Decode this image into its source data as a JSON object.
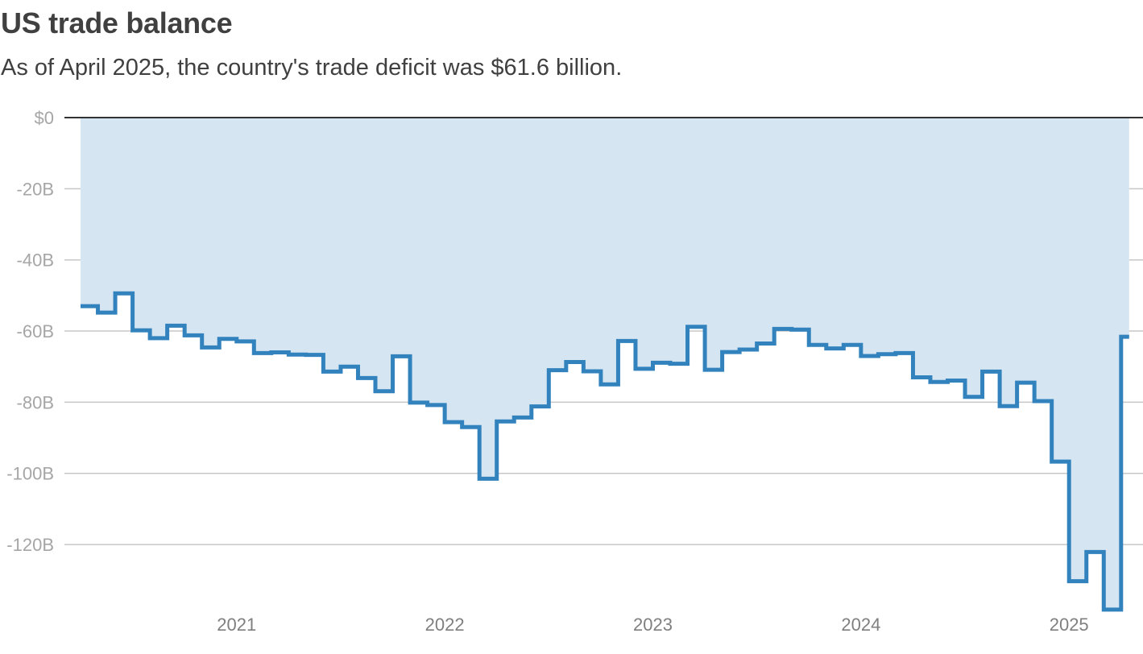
{
  "chart_data": {
    "type": "area",
    "title": "US trade balance",
    "subtitle": "As of April 2025, the country's trade deficit was $61.6 billion.",
    "xlabel": "",
    "ylabel": "",
    "ylim": [
      -139,
      0
    ],
    "y_ticks": [
      {
        "value": 0,
        "label": "$0"
      },
      {
        "value": -20,
        "label": "-20B"
      },
      {
        "value": -40,
        "label": "-40B"
      },
      {
        "value": -60,
        "label": "-60B"
      },
      {
        "value": -80,
        "label": "-80B"
      },
      {
        "value": -100,
        "label": "-100B"
      },
      {
        "value": -120,
        "label": "-120B"
      }
    ],
    "x_ticks": [
      {
        "year": 2021,
        "label": "2021"
      },
      {
        "year": 2022,
        "label": "2022"
      },
      {
        "year": 2023,
        "label": "2023"
      },
      {
        "year": 2024,
        "label": "2024"
      },
      {
        "year": 2025,
        "label": "2025"
      }
    ],
    "start": {
      "year": 2020,
      "month": 4
    },
    "grid": true,
    "colors": {
      "line": "#3182bd",
      "fill": "#d6e5f2",
      "grid": "#c7c7c7",
      "zero_line": "#333333"
    },
    "series": [
      {
        "name": "US trade balance ($B)",
        "step": true,
        "values": [
          -53.0,
          -54.8,
          -49.4,
          -59.8,
          -62.0,
          -58.5,
          -61.2,
          -64.6,
          -62.2,
          -62.9,
          -66.2,
          -66.0,
          -66.6,
          -66.7,
          -71.4,
          -70.0,
          -73.2,
          -76.9,
          -67.1,
          -80.1,
          -80.8,
          -85.6,
          -87.0,
          -101.5,
          -85.4,
          -84.3,
          -81.2,
          -71.0,
          -68.7,
          -71.3,
          -75.0,
          -62.8,
          -70.6,
          -68.9,
          -69.2,
          -58.8,
          -70.9,
          -65.9,
          -65.2,
          -63.5,
          -59.4,
          -59.6,
          -63.9,
          -64.9,
          -63.9,
          -67.0,
          -66.5,
          -66.2,
          -73.0,
          -74.3,
          -73.9,
          -78.5,
          -71.4,
          -81.1,
          -74.5,
          -79.7,
          -96.7,
          -130.3,
          -122.1,
          -138.3,
          -61.6
        ]
      }
    ]
  }
}
